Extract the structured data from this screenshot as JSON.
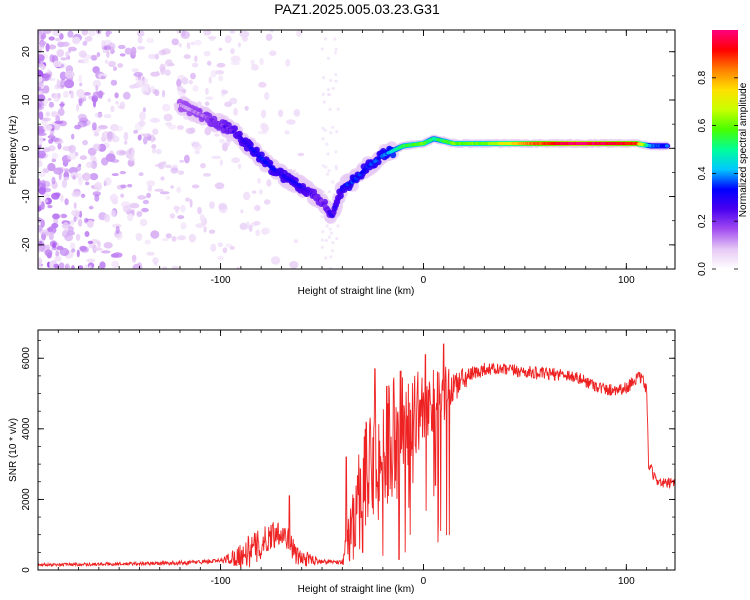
{
  "figure": {
    "title": "PAZ1.2025.005.03.23.G31"
  },
  "chart_data": [
    {
      "type": "heatmap",
      "xlabel": "Height of straight line (km)",
      "ylabel": "Frequency (Hz)",
      "xlim": [
        -190,
        124
      ],
      "ylim": [
        -25,
        24.5
      ],
      "x_ticks": [
        -100,
        0,
        100
      ],
      "y_ticks": [
        -20,
        -10,
        0,
        10,
        20
      ],
      "colorbar": {
        "label": "Normalized spectral amplitude",
        "range": [
          0,
          1
        ],
        "ticks": [
          "0.0",
          "0.2",
          "0.4",
          "0.6",
          "0.8"
        ],
        "colors": [
          "#ffffff",
          "#e6c9f5",
          "#a24cf0",
          "#4a00f0",
          "#0000ff",
          "#00c8ff",
          "#00ff9a",
          "#48ff00",
          "#c8ff00",
          "#ffe000",
          "#ff8000",
          "#ff0000",
          "#ff0080"
        ]
      },
      "ridge": [
        {
          "x": -120,
          "y": 9,
          "amp": 0.12
        },
        {
          "x": -110,
          "y": 7,
          "amp": 0.15
        },
        {
          "x": -100,
          "y": 5,
          "amp": 0.2
        },
        {
          "x": -92,
          "y": 3,
          "amp": 0.25
        },
        {
          "x": -85,
          "y": 0,
          "amp": 0.3
        },
        {
          "x": -80,
          "y": -2,
          "amp": 0.32
        },
        {
          "x": -75,
          "y": -4,
          "amp": 0.3
        },
        {
          "x": -68,
          "y": -6,
          "amp": 0.3
        },
        {
          "x": -60,
          "y": -8,
          "amp": 0.28
        },
        {
          "x": -50,
          "y": -11,
          "amp": 0.2
        },
        {
          "x": -45,
          "y": -14,
          "amp": 0.25
        },
        {
          "x": -40,
          "y": -8,
          "amp": 0.3
        },
        {
          "x": -35,
          "y": -7,
          "amp": 0.35
        },
        {
          "x": -28,
          "y": -4,
          "amp": 0.33
        },
        {
          "x": -20,
          "y": -1.5,
          "amp": 0.35
        },
        {
          "x": -10,
          "y": 0.5,
          "amp": 0.55
        },
        {
          "x": 0,
          "y": 1,
          "amp": 0.6
        },
        {
          "x": 5,
          "y": 2,
          "amp": 0.5
        },
        {
          "x": 15,
          "y": 1,
          "amp": 0.6
        },
        {
          "x": 30,
          "y": 1,
          "amp": 0.6
        },
        {
          "x": 45,
          "y": 1,
          "amp": 0.75
        },
        {
          "x": 60,
          "y": 1,
          "amp": 0.9
        },
        {
          "x": 75,
          "y": 1,
          "amp": 1.0
        },
        {
          "x": 90,
          "y": 1,
          "amp": 0.95
        },
        {
          "x": 105,
          "y": 1,
          "amp": 0.9
        },
        {
          "x": 112,
          "y": 0.5,
          "amp": 0.4
        },
        {
          "x": 120,
          "y": 0.5,
          "amp": 0.35
        }
      ]
    },
    {
      "type": "line",
      "xlabel": "Height of straight line (km)",
      "ylabel": "SNR (10 * v/v)",
      "xlim": [
        -190,
        124
      ],
      "ylim": [
        0,
        6800
      ],
      "x_ticks": [
        -100,
        0,
        100
      ],
      "y_ticks": [
        0,
        2000,
        4000,
        6000
      ],
      "color": "#ee2222",
      "series_profile": [
        {
          "x": -190,
          "y": 150
        },
        {
          "x": -150,
          "y": 170
        },
        {
          "x": -120,
          "y": 200
        },
        {
          "x": -100,
          "y": 260
        },
        {
          "x": -90,
          "y": 420
        },
        {
          "x": -80,
          "y": 700
        },
        {
          "x": -75,
          "y": 1000
        },
        {
          "x": -70,
          "y": 1100
        },
        {
          "x": -66,
          "y": 800
        },
        {
          "x": -62,
          "y": 350
        },
        {
          "x": -50,
          "y": 250
        },
        {
          "x": -40,
          "y": 220
        },
        {
          "x": -37,
          "y": 800
        },
        {
          "x": -33,
          "y": 1800
        },
        {
          "x": -28,
          "y": 2800
        },
        {
          "x": -22,
          "y": 3200
        },
        {
          "x": -15,
          "y": 3800
        },
        {
          "x": -10,
          "y": 4200
        },
        {
          "x": -5,
          "y": 4400
        },
        {
          "x": 0,
          "y": 4600
        },
        {
          "x": 10,
          "y": 5000
        },
        {
          "x": 20,
          "y": 5400
        },
        {
          "x": 30,
          "y": 5700
        },
        {
          "x": 45,
          "y": 5650
        },
        {
          "x": 60,
          "y": 5550
        },
        {
          "x": 70,
          "y": 5550
        },
        {
          "x": 80,
          "y": 5350
        },
        {
          "x": 90,
          "y": 5100
        },
        {
          "x": 100,
          "y": 5150
        },
        {
          "x": 105,
          "y": 5450
        },
        {
          "x": 108,
          "y": 5400
        },
        {
          "x": 110,
          "y": 5100
        },
        {
          "x": 111,
          "y": 3000
        },
        {
          "x": 114,
          "y": 2600
        },
        {
          "x": 118,
          "y": 2450
        },
        {
          "x": 124,
          "y": 2450
        }
      ],
      "noise_profile": [
        {
          "x": -190,
          "y": 40
        },
        {
          "x": -100,
          "y": 60
        },
        {
          "x": -85,
          "y": 500
        },
        {
          "x": -62,
          "y": 300
        },
        {
          "x": -50,
          "y": 60
        },
        {
          "x": -40,
          "y": 60
        },
        {
          "x": -35,
          "y": 1200
        },
        {
          "x": -20,
          "y": 1800
        },
        {
          "x": -10,
          "y": 1600
        },
        {
          "x": 0,
          "y": 1000
        },
        {
          "x": 10,
          "y": 800
        },
        {
          "x": 20,
          "y": 300
        },
        {
          "x": 30,
          "y": 180
        },
        {
          "x": 105,
          "y": 180
        },
        {
          "x": 115,
          "y": 150
        },
        {
          "x": 124,
          "y": 150
        }
      ],
      "peaks": [
        {
          "x": -66,
          "y": 2100
        },
        {
          "x": -38,
          "y": 3200
        },
        {
          "x": -24,
          "y": 5700
        },
        {
          "x": -18,
          "y": 5200
        },
        {
          "x": -12,
          "y": 6300
        },
        {
          "x": -9,
          "y": 6800
        },
        {
          "x": 1,
          "y": 6100
        },
        {
          "x": 10,
          "y": 6400
        }
      ],
      "dips": [
        {
          "x": -30,
          "y": 500
        },
        {
          "x": -20,
          "y": 400
        },
        {
          "x": -12,
          "y": 300
        },
        {
          "x": -9,
          "y": 500
        },
        {
          "x": 6,
          "y": 2400
        }
      ]
    }
  ]
}
